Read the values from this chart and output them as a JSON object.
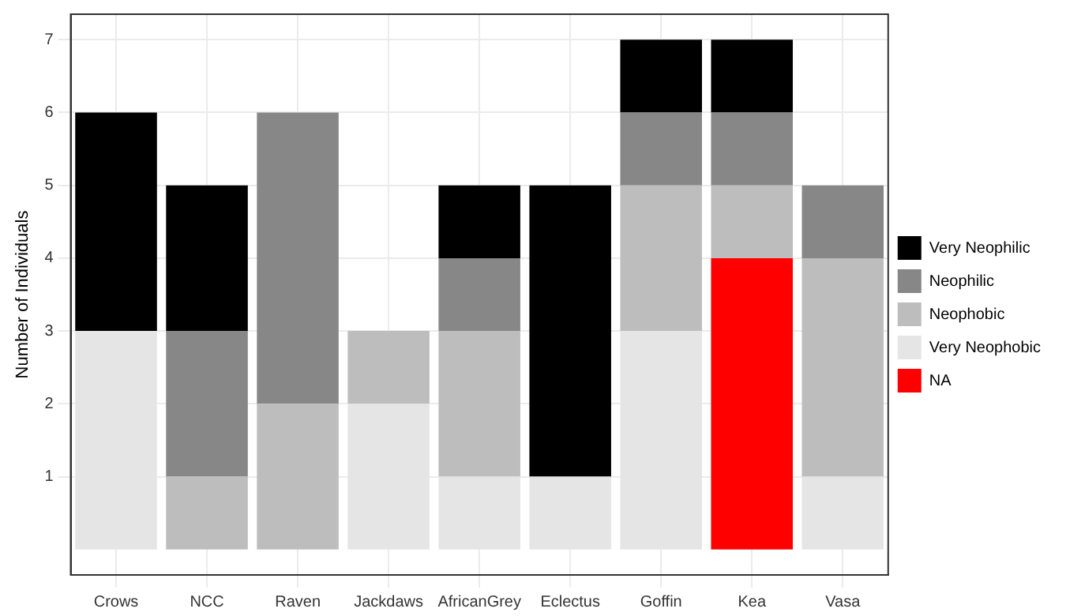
{
  "chart_data": {
    "type": "bar",
    "stacked": true,
    "ylabel": "Number of Individuals",
    "categories": [
      "Crows",
      "NCC",
      "Raven",
      "Jackdaws",
      "AfricanGrey",
      "Eclectus",
      "Goffin",
      "Kea",
      "Vasa"
    ],
    "series": [
      {
        "name": "NA",
        "color": "#ff0000",
        "values": [
          null,
          null,
          null,
          null,
          null,
          null,
          null,
          4,
          null
        ]
      },
      {
        "name": "Very Neophobic",
        "color": "#e5e5e5",
        "values": [
          3,
          null,
          null,
          2,
          1,
          1,
          3,
          null,
          1
        ]
      },
      {
        "name": "Neophobic",
        "color": "#bdbdbd",
        "values": [
          null,
          1,
          2,
          1,
          2,
          null,
          2,
          1,
          3
        ]
      },
      {
        "name": "Neophilic",
        "color": "#878787",
        "values": [
          null,
          2,
          4,
          null,
          1,
          null,
          1,
          1,
          1
        ]
      },
      {
        "name": "Very Neophilic",
        "color": "#000000",
        "values": [
          3,
          2,
          null,
          null,
          1,
          4,
          1,
          1,
          null
        ]
      }
    ],
    "ylim": [
      -0.35,
      7.35
    ],
    "yticks": [
      1,
      2,
      3,
      4,
      5,
      6,
      7
    ],
    "grid": true,
    "legend": "right"
  }
}
